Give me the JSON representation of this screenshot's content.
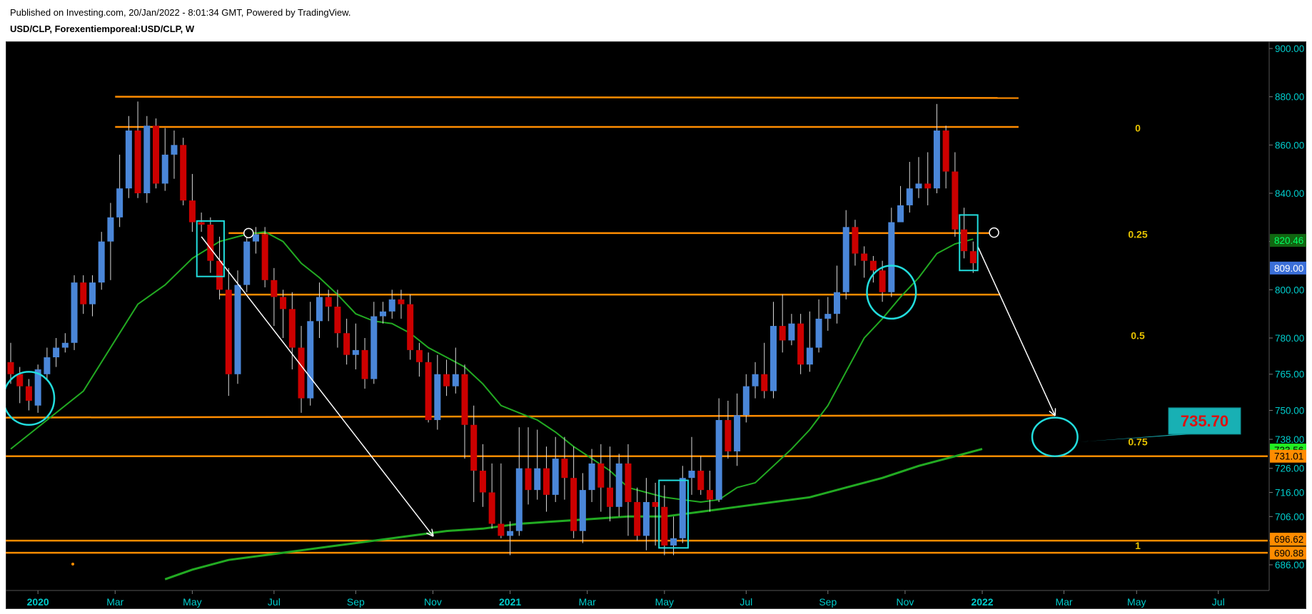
{
  "header": {
    "published": "Published on Investing.com, 20/Jan/2022 - 8:01:34 GMT, Powered by TradingView.",
    "symbol": "USD/CLP, Forexentiemporeal:USD/CLP, W"
  },
  "colors": {
    "background": "#000000",
    "up_candle": "#4a86d8",
    "down_candle": "#cc0000",
    "wick": "#d8d8d8",
    "orange_line": "#ff8c00",
    "fib_text": "#e6c200",
    "ma_line": "#22aa22",
    "axis_text": "#00cccc",
    "annotation": "#22dddd"
  },
  "chart_data": {
    "type": "candlestick",
    "title": "USD/CLP, Forexentiemporeal:USD/CLP, W",
    "ylim": [
      681,
      903
    ],
    "y_ticks": [
      {
        "v": 900,
        "label": "900.00"
      },
      {
        "v": 880,
        "label": "880.00"
      },
      {
        "v": 860,
        "label": "860.00"
      },
      {
        "v": 840,
        "label": "840.00"
      },
      {
        "v": 820,
        "label": "820.00"
      },
      {
        "v": 800,
        "label": "800.00"
      },
      {
        "v": 780,
        "label": "780.00"
      },
      {
        "v": 765,
        "label": "765.00"
      },
      {
        "v": 750,
        "label": "750.00"
      },
      {
        "v": 738,
        "label": "738.00"
      },
      {
        "v": 726,
        "label": "726.00"
      },
      {
        "v": 716,
        "label": "716.00"
      },
      {
        "v": 706,
        "label": "706.00"
      },
      {
        "v": 696,
        "label": "696.00"
      },
      {
        "v": 686,
        "label": "686.00"
      }
    ],
    "x_ticks": [
      {
        "i": 3,
        "label": "2020",
        "bold": true
      },
      {
        "i": 11.5,
        "label": "Mar"
      },
      {
        "i": 20,
        "label": "May"
      },
      {
        "i": 29,
        "label": "Jul"
      },
      {
        "i": 38,
        "label": "Sep"
      },
      {
        "i": 46.5,
        "label": "Nov"
      },
      {
        "i": 55,
        "label": "2021",
        "bold": true
      },
      {
        "i": 63.5,
        "label": "Mar"
      },
      {
        "i": 72,
        "label": "May"
      },
      {
        "i": 81,
        "label": "Jul"
      },
      {
        "i": 90,
        "label": "Sep"
      },
      {
        "i": 98.5,
        "label": "Nov"
      },
      {
        "i": 107,
        "label": "2022",
        "bold": true
      },
      {
        "i": 116,
        "label": "Mar"
      },
      {
        "i": 124,
        "label": "May"
      },
      {
        "i": 133,
        "label": "Jul"
      }
    ],
    "candles": [
      [
        0,
        770,
        765,
        778,
        761
      ],
      [
        1,
        765,
        760,
        768,
        753
      ],
      [
        2,
        760,
        754,
        763,
        750
      ],
      [
        3,
        752,
        767,
        769,
        749
      ],
      [
        4,
        765,
        772,
        776,
        763
      ],
      [
        5,
        772,
        776,
        780,
        768
      ],
      [
        6,
        776,
        778,
        782,
        774
      ],
      [
        7,
        778,
        803,
        806,
        775
      ],
      [
        8,
        803,
        794,
        806,
        790
      ],
      [
        9,
        794,
        803,
        806,
        789
      ],
      [
        10,
        803,
        820,
        824,
        800
      ],
      [
        11,
        820,
        830,
        836,
        804
      ],
      [
        12,
        830,
        842,
        856,
        826
      ],
      [
        13,
        842,
        866,
        872,
        838
      ],
      [
        14,
        866,
        840,
        878,
        838
      ],
      [
        15,
        840,
        868,
        872,
        836
      ],
      [
        16,
        868,
        844,
        871,
        842
      ],
      [
        17,
        844,
        856,
        867,
        841
      ],
      [
        18,
        856,
        860,
        866,
        846
      ],
      [
        19,
        860,
        837,
        863,
        835
      ],
      [
        20,
        837,
        828,
        848,
        824
      ],
      [
        21,
        828,
        827,
        832,
        824
      ],
      [
        22,
        827,
        812,
        830,
        807
      ],
      [
        23,
        812,
        800,
        822,
        796
      ],
      [
        24,
        800,
        765,
        809,
        756
      ],
      [
        25,
        765,
        802,
        808,
        761
      ],
      [
        26,
        802,
        820,
        823,
        799
      ],
      [
        27,
        820,
        823,
        826,
        815
      ],
      [
        28,
        823,
        804,
        826,
        801
      ],
      [
        29,
        804,
        797,
        809,
        785
      ],
      [
        30,
        797,
        792,
        800,
        780
      ],
      [
        31,
        792,
        776,
        799,
        767
      ],
      [
        32,
        776,
        755,
        785,
        749
      ],
      [
        33,
        755,
        787,
        795,
        752
      ],
      [
        34,
        787,
        797,
        803,
        780
      ],
      [
        35,
        797,
        793,
        800,
        787
      ],
      [
        36,
        793,
        782,
        800,
        776
      ],
      [
        37,
        782,
        773,
        788,
        769
      ],
      [
        38,
        773,
        775,
        786,
        767
      ],
      [
        39,
        775,
        763,
        780,
        759
      ],
      [
        40,
        763,
        789,
        795,
        761
      ],
      [
        41,
        789,
        791,
        795,
        786
      ],
      [
        42,
        791,
        796,
        800,
        788
      ],
      [
        43,
        796,
        794,
        800,
        788
      ],
      [
        44,
        794,
        775,
        798,
        771
      ],
      [
        45,
        775,
        770,
        778,
        764
      ],
      [
        46,
        770,
        746,
        774,
        745
      ],
      [
        47,
        746,
        765,
        773,
        742
      ],
      [
        48,
        765,
        760,
        771,
        756
      ],
      [
        49,
        760,
        765,
        776,
        757
      ],
      [
        50,
        765,
        744,
        769,
        730
      ],
      [
        51,
        744,
        725,
        752,
        712
      ],
      [
        52,
        725,
        716,
        736,
        710
      ],
      [
        53,
        716,
        703,
        728,
        701
      ],
      [
        54,
        703,
        698,
        728,
        697
      ],
      [
        55,
        698,
        700,
        704,
        690
      ],
      [
        56,
        700,
        726,
        743,
        698
      ],
      [
        57,
        726,
        717,
        743,
        711
      ],
      [
        58,
        717,
        726,
        742,
        713
      ],
      [
        59,
        726,
        715,
        735,
        708
      ],
      [
        60,
        715,
        730,
        739,
        712
      ],
      [
        61,
        730,
        722,
        739,
        713
      ],
      [
        62,
        722,
        700,
        735,
        697
      ],
      [
        63,
        700,
        717,
        724,
        695
      ],
      [
        64,
        717,
        728,
        734,
        712
      ],
      [
        65,
        728,
        718,
        736,
        708
      ],
      [
        66,
        718,
        710,
        735,
        704
      ],
      [
        67,
        710,
        728,
        732,
        706
      ],
      [
        68,
        728,
        712,
        736,
        698
      ],
      [
        69,
        712,
        698,
        718,
        696
      ],
      [
        70,
        698,
        712,
        722,
        692
      ],
      [
        71,
        712,
        710,
        720,
        694
      ],
      [
        72,
        710,
        694,
        719,
        690
      ],
      [
        73,
        694,
        697,
        706,
        690
      ],
      [
        74,
        697,
        722,
        727,
        695
      ],
      [
        75,
        722,
        725,
        739,
        715
      ],
      [
        76,
        725,
        717,
        731,
        715
      ],
      [
        77,
        717,
        713,
        725,
        708
      ],
      [
        78,
        713,
        746,
        755,
        712
      ],
      [
        79,
        746,
        733,
        754,
        730
      ],
      [
        80,
        733,
        748,
        757,
        727
      ],
      [
        81,
        748,
        760,
        765,
        745
      ],
      [
        82,
        760,
        765,
        770,
        755
      ],
      [
        83,
        765,
        758,
        778,
        755
      ],
      [
        84,
        758,
        785,
        795,
        755
      ],
      [
        85,
        785,
        779,
        798,
        774
      ],
      [
        86,
        779,
        786,
        790,
        777
      ],
      [
        87,
        786,
        769,
        790,
        765
      ],
      [
        88,
        769,
        776,
        791,
        766
      ],
      [
        89,
        776,
        788,
        796,
        774
      ],
      [
        90,
        788,
        790,
        797,
        783
      ],
      [
        91,
        790,
        799,
        810,
        786
      ],
      [
        92,
        799,
        826,
        833,
        796
      ],
      [
        93,
        826,
        815,
        829,
        810
      ],
      [
        94,
        815,
        812,
        818,
        805
      ],
      [
        95,
        812,
        808,
        814,
        803
      ],
      [
        96,
        808,
        799,
        812,
        795
      ],
      [
        97,
        799,
        828,
        834,
        797
      ],
      [
        98,
        828,
        835,
        843,
        832
      ],
      [
        99,
        835,
        842,
        853,
        832
      ],
      [
        100,
        842,
        844,
        855,
        838
      ],
      [
        101,
        844,
        842,
        857,
        835
      ],
      [
        102,
        842,
        866,
        877,
        840
      ],
      [
        103,
        866,
        849,
        868,
        842
      ],
      [
        104,
        849,
        825,
        857,
        822
      ],
      [
        105,
        825,
        816,
        834,
        813
      ],
      [
        106,
        816,
        811,
        820,
        807
      ]
    ],
    "ma_short": [
      [
        0,
        734
      ],
      [
        4,
        746
      ],
      [
        8,
        758
      ],
      [
        12,
        782
      ],
      [
        14,
        794
      ],
      [
        17,
        802
      ],
      [
        20,
        813
      ],
      [
        23,
        820
      ],
      [
        26,
        823
      ],
      [
        28,
        824
      ],
      [
        30,
        820
      ],
      [
        32,
        811
      ],
      [
        34,
        805
      ],
      [
        36,
        798
      ],
      [
        38,
        790
      ],
      [
        40,
        787
      ],
      [
        42,
        786
      ],
      [
        44,
        782
      ],
      [
        46,
        776
      ],
      [
        48,
        772
      ],
      [
        50,
        768
      ],
      [
        52,
        761
      ],
      [
        54,
        752
      ],
      [
        56,
        749
      ],
      [
        58,
        746
      ],
      [
        60,
        741
      ],
      [
        62,
        735
      ],
      [
        64,
        730
      ],
      [
        66,
        725
      ],
      [
        68,
        718
      ],
      [
        70,
        716
      ],
      [
        72,
        714
      ],
      [
        74,
        713
      ],
      [
        76,
        712
      ],
      [
        78,
        713
      ],
      [
        80,
        718
      ],
      [
        82,
        720
      ],
      [
        84,
        727
      ],
      [
        86,
        734
      ],
      [
        88,
        742
      ],
      [
        90,
        752
      ],
      [
        92,
        766
      ],
      [
        94,
        780
      ],
      [
        96,
        788
      ],
      [
        98,
        797
      ],
      [
        100,
        805
      ],
      [
        102,
        815
      ],
      [
        104,
        819
      ],
      [
        106,
        821
      ]
    ],
    "ma_long": [
      [
        17,
        680
      ],
      [
        20,
        684
      ],
      [
        24,
        688
      ],
      [
        28,
        690
      ],
      [
        32,
        692
      ],
      [
        36,
        694
      ],
      [
        40,
        696
      ],
      [
        44,
        698
      ],
      [
        48,
        700
      ],
      [
        52,
        701
      ],
      [
        56,
        703
      ],
      [
        60,
        704
      ],
      [
        64,
        705
      ],
      [
        68,
        706
      ],
      [
        72,
        706
      ],
      [
        76,
        708
      ],
      [
        80,
        710
      ],
      [
        84,
        712
      ],
      [
        88,
        714
      ],
      [
        92,
        718
      ],
      [
        96,
        722
      ],
      [
        100,
        727
      ],
      [
        104,
        731
      ],
      [
        107,
        734
      ]
    ],
    "horizontal_lines": [
      {
        "x0": 11.5,
        "x1": 111,
        "v0": 880,
        "v1": 879.5
      },
      {
        "x0": 11.5,
        "x1": 111,
        "v0": 867.5,
        "v1": 867.5
      },
      {
        "x0": 24,
        "x1": 108,
        "v0": 823.5,
        "v1": 823.5
      },
      {
        "x0": 23,
        "x1": 109,
        "v0": 798,
        "v1": 798
      },
      {
        "x0": -2,
        "x1": 115,
        "v0": 747,
        "v1": 748
      },
      {
        "x0": -2,
        "x1": 140,
        "v0": 731,
        "v1": 731
      },
      {
        "x0": -2,
        "x1": 140,
        "v0": 696,
        "v1": 696
      },
      {
        "x0": -2,
        "x1": 140,
        "v0": 691,
        "v1": 691
      }
    ],
    "fib_levels": [
      {
        "label": "0",
        "v": 867
      },
      {
        "label": "0.25",
        "v": 823
      },
      {
        "label": "0.5",
        "v": 781
      },
      {
        "label": "0.75",
        "v": 737
      },
      {
        "label": "1",
        "v": 694
      }
    ],
    "price_labels": [
      {
        "label": "820.46",
        "v": 820.46,
        "bg": "#116611",
        "fg": "#00ff66"
      },
      {
        "label": "809.00",
        "v": 809.0,
        "bg": "#3b6fd8",
        "fg": "#ffffff"
      },
      {
        "label": "733.56",
        "v": 733.56,
        "bg": "#22ee22",
        "fg": "#000000"
      },
      {
        "label": "731.01",
        "v": 731.01,
        "bg": "#ff8c00",
        "fg": "#000000"
      },
      {
        "label": "696.62",
        "v": 696.62,
        "bg": "#ff8c00",
        "fg": "#000000"
      },
      {
        "label": "690.88",
        "v": 690.88,
        "bg": "#ff8c00",
        "fg": "#000000"
      }
    ],
    "target_label": "735.70",
    "arrows": [
      {
        "i0": 21,
        "v0": 822,
        "i1": 46.5,
        "v1": 698
      },
      {
        "i0": 106.5,
        "v0": 818,
        "i1": 115,
        "v1": 748
      }
    ],
    "ellipses": [
      {
        "i": 2,
        "v": 755,
        "ri": 2.8,
        "rv": 11
      },
      {
        "i": 97,
        "v": 799,
        "ri": 2.7,
        "rv": 11
      },
      {
        "i": 115,
        "v": 739,
        "ri": 2.5,
        "rv": 8
      }
    ],
    "boxes": [
      {
        "i0": 20.5,
        "i1": 23.5,
        "v0": 828.5,
        "v1": 805.5
      },
      {
        "i0": 71.4,
        "i1": 74.6,
        "v0": 721,
        "v1": 693
      },
      {
        "i0": 104.5,
        "i1": 106.5,
        "v0": 831,
        "v1": 808
      }
    ],
    "points": [
      {
        "i": 26.2,
        "v": 823.5
      },
      {
        "i": 108.3,
        "v": 823.7
      }
    ]
  }
}
